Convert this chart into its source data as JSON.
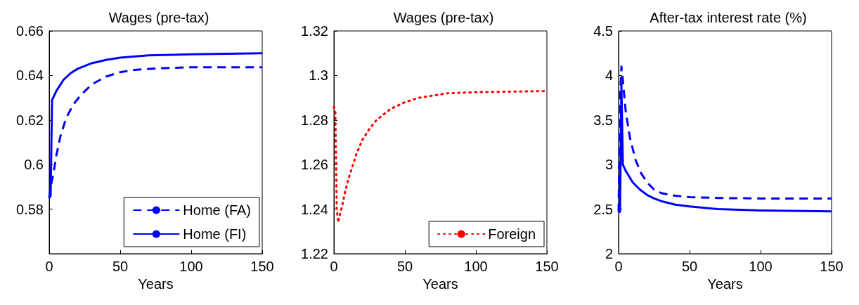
{
  "chart_data": [
    {
      "type": "line",
      "title": "Wages (pre-tax)",
      "xlabel": "Years",
      "xlim": [
        0,
        150
      ],
      "xticks": [
        0,
        50,
        100,
        150
      ],
      "ylim": [
        0.56,
        0.66
      ],
      "yticks": [
        0.58,
        0.6,
        0.62,
        0.64,
        0.66
      ],
      "grid": false,
      "legend": "bottom right",
      "marker": "none",
      "series": [
        {
          "name": "Home (FA)",
          "color": "#0000ff",
          "line_style": "dashed",
          "x": [
            0,
            1,
            3,
            5,
            8,
            12,
            17,
            22,
            30,
            40,
            50,
            60,
            80,
            100,
            150
          ],
          "values": [
            0.585,
            0.59,
            0.596,
            0.604,
            0.613,
            0.621,
            0.627,
            0.631,
            0.636,
            0.6395,
            0.6415,
            0.6425,
            0.6433,
            0.6437,
            0.6437
          ]
        },
        {
          "name": "Home (FI)",
          "color": "#0000ff",
          "line_style": "solid",
          "x": [
            0,
            1,
            2,
            5,
            10,
            15,
            20,
            30,
            40,
            50,
            70,
            100,
            150
          ],
          "values": [
            0.585,
            0.586,
            0.629,
            0.633,
            0.638,
            0.641,
            0.643,
            0.6455,
            0.647,
            0.648,
            0.649,
            0.6495,
            0.65
          ]
        }
      ]
    },
    {
      "type": "line",
      "title": "Wages (pre-tax)",
      "xlabel": "Years",
      "xlim": [
        0,
        150
      ],
      "xticks": [
        0,
        50,
        100,
        150
      ],
      "ylim": [
        1.22,
        1.32
      ],
      "yticks": [
        1.22,
        1.24,
        1.26,
        1.28,
        1.3,
        1.32
      ],
      "grid": false,
      "legend": "bottom right",
      "marker": "none",
      "series": [
        {
          "name": "Foreign",
          "color": "#ff0000",
          "line_style": "dotted",
          "x": [
            0,
            1,
            2,
            3,
            4,
            6,
            8,
            10,
            13,
            16,
            20,
            25,
            30,
            40,
            50,
            60,
            80,
            100,
            150
          ],
          "values": [
            1.286,
            1.284,
            1.24,
            1.234,
            1.237,
            1.242,
            1.248,
            1.253,
            1.259,
            1.265,
            1.271,
            1.276,
            1.28,
            1.285,
            1.288,
            1.29,
            1.292,
            1.2925,
            1.293
          ]
        }
      ]
    },
    {
      "type": "line",
      "title": "After-tax interest rate (%)",
      "xlabel": "Years",
      "xlim": [
        0,
        150
      ],
      "xticks": [
        0,
        50,
        100,
        150
      ],
      "ylim": [
        2,
        4.5
      ],
      "yticks": [
        2,
        2.5,
        3,
        3.5,
        4,
        4.5
      ],
      "grid": false,
      "legend": false,
      "marker": "none",
      "series": [
        {
          "color": "#0000ff",
          "line_style": "dashed",
          "x": [
            0,
            1,
            2,
            3,
            5,
            8,
            12,
            16,
            20,
            25,
            30,
            40,
            50,
            70,
            100,
            150
          ],
          "values": [
            2.47,
            3.7,
            4.1,
            3.95,
            3.6,
            3.3,
            3.05,
            2.9,
            2.8,
            2.72,
            2.68,
            2.65,
            2.635,
            2.625,
            2.62,
            2.62
          ]
        },
        {
          "color": "#0000ff",
          "line_style": "solid",
          "x": [
            0,
            1,
            2,
            3,
            5,
            10,
            15,
            20,
            25,
            30,
            40,
            50,
            70,
            100,
            150
          ],
          "values": [
            2.47,
            2.47,
            3.9,
            3.0,
            2.93,
            2.8,
            2.72,
            2.66,
            2.62,
            2.59,
            2.55,
            2.53,
            2.5,
            2.485,
            2.475
          ]
        }
      ]
    }
  ]
}
